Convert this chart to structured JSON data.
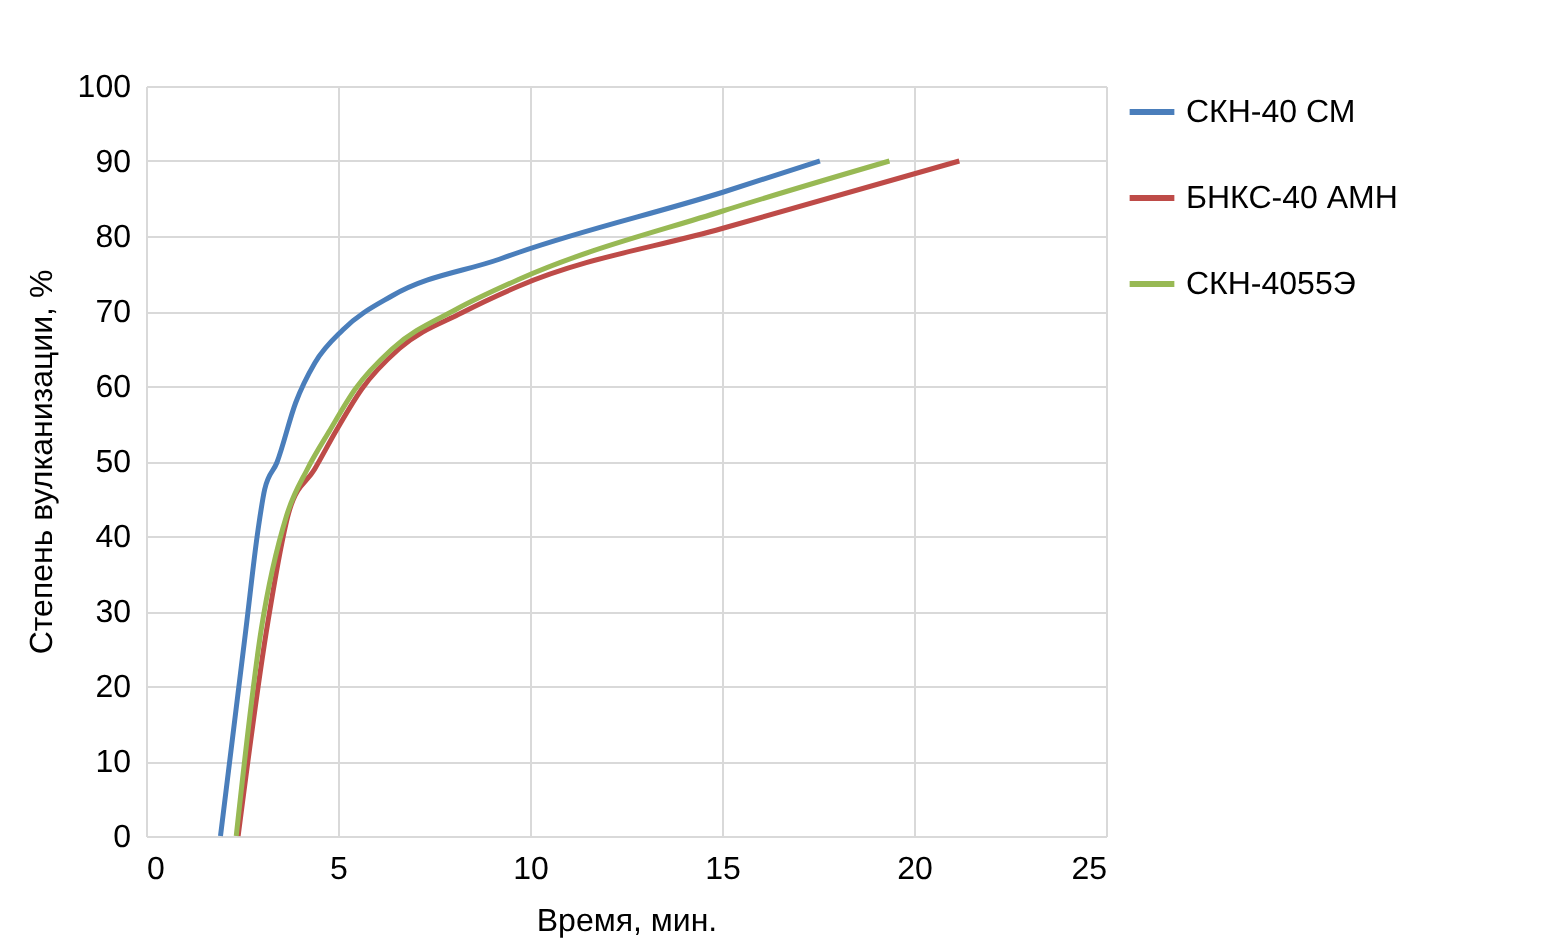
{
  "chart_data": {
    "type": "line",
    "xlabel": "Время, мин.",
    "ylabel": "Степень вулканизации, %",
    "xlim": [
      0,
      25
    ],
    "xticks": [
      0,
      5,
      10,
      15,
      20,
      25
    ],
    "ylim": [
      0,
      100
    ],
    "yticks": [
      0,
      10,
      20,
      30,
      40,
      50,
      60,
      70,
      80,
      90,
      100
    ],
    "grid": true,
    "legend": "right",
    "line_style": "solid",
    "marker": "none",
    "series": [
      {
        "name": "СКН-40 СМ",
        "color": "#4a7ebb",
        "x": [
          1.94,
          2.6,
          2.92,
          3.09,
          3.41,
          3.9,
          4.4,
          5.13,
          6.4,
          9.2,
          9.7,
          15,
          17.55
        ],
        "values": [
          0,
          27.5,
          40.9,
          46.2,
          49.8,
          57.8,
          63.1,
          67.5,
          72,
          76.9,
          77.8,
          85.8,
          90
        ]
      },
      {
        "name": "БНКС-40 АМН",
        "color": "#be4b48",
        "x": [
          2.4,
          3.17,
          3.74,
          4.39,
          4.97,
          5.62,
          6.6,
          8.24,
          9.7,
          15,
          21.18
        ],
        "values": [
          0,
          28.4,
          43.5,
          48.9,
          54.2,
          59.6,
          65,
          69.8,
          73.3,
          81,
          90
        ]
      },
      {
        "name": "СКН-4055Э",
        "color": "#98b954",
        "x": [
          2.35,
          3.0,
          3.66,
          4.2,
          4.8,
          5.45,
          6.4,
          8.07,
          9.7,
          15,
          19.36
        ],
        "values": [
          0,
          27.5,
          42.7,
          48.9,
          54.2,
          59.6,
          64.9,
          70.2,
          74.2,
          83.3,
          90
        ]
      }
    ]
  }
}
